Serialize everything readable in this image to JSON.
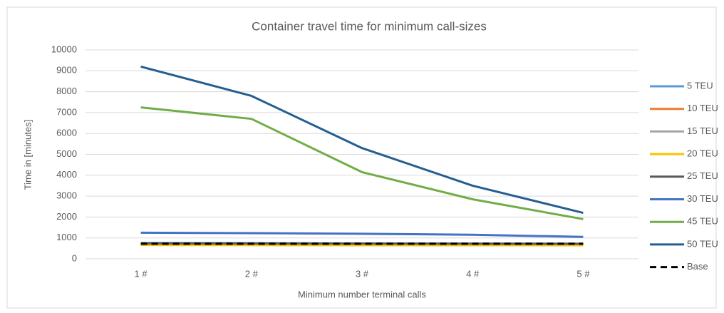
{
  "chart_data": {
    "type": "line",
    "title": "Container travel time for minimum call-sizes",
    "x_label": "Minimum number terminal calls",
    "y_label": "Time in [minutes]",
    "categories": [
      "1 #",
      "2 #",
      "3 #",
      "4 #",
      "5 #"
    ],
    "ylim": [
      0,
      10000
    ],
    "yticks": [
      0,
      1000,
      2000,
      3000,
      4000,
      5000,
      6000,
      7000,
      8000,
      9000,
      10000
    ],
    "grid": true,
    "legend": "right",
    "series": [
      {
        "name": "5 TEU",
        "color": "#5b9bd5",
        "values": [
          760,
          750,
          740,
          730,
          720
        ]
      },
      {
        "name": "10 TEU",
        "color": "#ed7d31",
        "values": [
          700,
          695,
          690,
          685,
          680
        ]
      },
      {
        "name": "15 TEU",
        "color": "#a5a5a5",
        "values": [
          720,
          715,
          710,
          705,
          700
        ]
      },
      {
        "name": "20 TEU",
        "color": "#ffc000",
        "values": [
          660,
          655,
          650,
          650,
          650
        ]
      },
      {
        "name": "25 TEU",
        "color": "#595959",
        "values": [
          740,
          735,
          730,
          725,
          720
        ]
      },
      {
        "name": "30 TEU",
        "color": "#4472c4",
        "values": [
          1250,
          1230,
          1200,
          1150,
          1050
        ]
      },
      {
        "name": "45 TEU",
        "color": "#70ad47",
        "values": [
          7250,
          6700,
          4150,
          2850,
          1900
        ]
      },
      {
        "name": "50 TEU",
        "color": "#255e91",
        "values": [
          9200,
          7800,
          5300,
          3500,
          2200
        ]
      },
      {
        "name": "Base",
        "color": "#000000",
        "dashed": true,
        "values": [
          720,
          720,
          720,
          720,
          720
        ]
      }
    ]
  }
}
